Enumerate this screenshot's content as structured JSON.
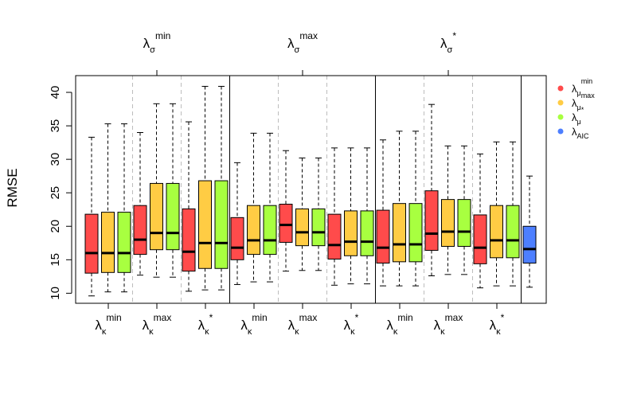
{
  "chart_data": {
    "type": "boxplot",
    "ylabel": "RMSE",
    "ylim": [
      8.5,
      42.5
    ],
    "yticks": [
      10,
      15,
      20,
      25,
      30,
      35,
      40
    ],
    "colors": {
      "mu_min": "#ff4b4b",
      "mu_max": "#ffcc44",
      "mu_star": "#a8ff40",
      "aic": "#4d7fff"
    },
    "sigma_groups": [
      {
        "symbol": "λ",
        "sub": "σ",
        "sup": "min"
      },
      {
        "symbol": "λ",
        "sub": "σ",
        "sup": "max"
      },
      {
        "symbol": "λ",
        "sub": "σ",
        "sup": "*"
      }
    ],
    "kappa_labels": [
      {
        "symbol": "λ",
        "sub": "κ",
        "sup": "min"
      },
      {
        "symbol": "λ",
        "sub": "κ",
        "sup": "max"
      },
      {
        "symbol": "λ",
        "sub": "κ",
        "sup": "*"
      },
      {
        "symbol": "λ",
        "sub": "κ",
        "sup": "min"
      },
      {
        "symbol": "λ",
        "sub": "κ",
        "sup": "max"
      },
      {
        "symbol": "λ",
        "sub": "κ",
        "sup": "*"
      },
      {
        "symbol": "λ",
        "sub": "κ",
        "sup": "min"
      },
      {
        "symbol": "λ",
        "sub": "κ",
        "sup": "max"
      },
      {
        "symbol": "λ",
        "sub": "κ",
        "sup": "*"
      }
    ],
    "legend": {
      "position": "top-right",
      "entries": [
        {
          "key": "mu_min",
          "symbol": "λ",
          "sub": "μ",
          "sup": "min"
        },
        {
          "key": "mu_max",
          "symbol": "λ",
          "sub": "μ",
          "sup": "max"
        },
        {
          "key": "mu_star",
          "symbol": "λ",
          "sub": "μ",
          "sup": "*"
        },
        {
          "key": "aic",
          "symbol": "λ",
          "sub": "AIC",
          "sup": ""
        }
      ]
    },
    "boxes": [
      {
        "color": "mu_min",
        "whisker_low": 9.6,
        "q1": 13.0,
        "median": 16.0,
        "q3": 21.8,
        "whisker_high": 33.3
      },
      {
        "color": "mu_max",
        "whisker_low": 10.2,
        "q1": 13.1,
        "median": 16.0,
        "q3": 22.1,
        "whisker_high": 35.3
      },
      {
        "color": "mu_star",
        "whisker_low": 10.2,
        "q1": 13.1,
        "median": 16.0,
        "q3": 22.1,
        "whisker_high": 35.3
      },
      {
        "color": "mu_min",
        "whisker_low": 12.7,
        "q1": 15.8,
        "median": 18.0,
        "q3": 23.1,
        "whisker_high": 34.0
      },
      {
        "color": "mu_max",
        "whisker_low": 12.4,
        "q1": 16.5,
        "median": 19.0,
        "q3": 26.4,
        "whisker_high": 38.3
      },
      {
        "color": "mu_star",
        "whisker_low": 12.4,
        "q1": 16.5,
        "median": 19.0,
        "q3": 26.4,
        "whisker_high": 38.3
      },
      {
        "color": "mu_min",
        "whisker_low": 10.3,
        "q1": 13.3,
        "median": 16.2,
        "q3": 22.6,
        "whisker_high": 35.6
      },
      {
        "color": "mu_max",
        "whisker_low": 10.5,
        "q1": 13.7,
        "median": 17.5,
        "q3": 26.8,
        "whisker_high": 40.9
      },
      {
        "color": "mu_star",
        "whisker_low": 10.5,
        "q1": 13.7,
        "median": 17.5,
        "q3": 26.8,
        "whisker_high": 40.9
      },
      {
        "color": "mu_min",
        "whisker_low": 11.3,
        "q1": 15.0,
        "median": 16.8,
        "q3": 21.3,
        "whisker_high": 29.5
      },
      {
        "color": "mu_max",
        "whisker_low": 11.7,
        "q1": 15.8,
        "median": 17.9,
        "q3": 23.1,
        "whisker_high": 33.9
      },
      {
        "color": "mu_star",
        "whisker_low": 11.7,
        "q1": 15.8,
        "median": 17.9,
        "q3": 23.1,
        "whisker_high": 33.9
      },
      {
        "color": "mu_min",
        "whisker_low": 13.3,
        "q1": 17.6,
        "median": 20.2,
        "q3": 23.3,
        "whisker_high": 31.3
      },
      {
        "color": "mu_max",
        "whisker_low": 13.4,
        "q1": 17.1,
        "median": 19.1,
        "q3": 22.6,
        "whisker_high": 30.2
      },
      {
        "color": "mu_star",
        "whisker_low": 13.4,
        "q1": 17.1,
        "median": 19.1,
        "q3": 22.6,
        "whisker_high": 30.2
      },
      {
        "color": "mu_min",
        "whisker_low": 11.2,
        "q1": 15.1,
        "median": 17.2,
        "q3": 21.8,
        "whisker_high": 31.7
      },
      {
        "color": "mu_max",
        "whisker_low": 11.4,
        "q1": 15.6,
        "median": 17.7,
        "q3": 22.3,
        "whisker_high": 31.7
      },
      {
        "color": "mu_star",
        "whisker_low": 11.4,
        "q1": 15.6,
        "median": 17.7,
        "q3": 22.3,
        "whisker_high": 31.7
      },
      {
        "color": "mu_min",
        "whisker_low": 11.1,
        "q1": 14.5,
        "median": 16.8,
        "q3": 22.4,
        "whisker_high": 32.9
      },
      {
        "color": "mu_max",
        "whisker_low": 11.1,
        "q1": 14.7,
        "median": 17.3,
        "q3": 23.4,
        "whisker_high": 34.2
      },
      {
        "color": "mu_star",
        "whisker_low": 11.1,
        "q1": 14.7,
        "median": 17.3,
        "q3": 23.4,
        "whisker_high": 34.2
      },
      {
        "color": "mu_min",
        "whisker_low": 12.6,
        "q1": 16.4,
        "median": 18.9,
        "q3": 25.3,
        "whisker_high": 38.2
      },
      {
        "color": "mu_max",
        "whisker_low": 12.8,
        "q1": 17.0,
        "median": 19.2,
        "q3": 24.0,
        "whisker_high": 32.0
      },
      {
        "color": "mu_star",
        "whisker_low": 12.8,
        "q1": 17.0,
        "median": 19.2,
        "q3": 24.0,
        "whisker_high": 32.0
      },
      {
        "color": "mu_min",
        "whisker_low": 10.8,
        "q1": 14.4,
        "median": 16.8,
        "q3": 21.7,
        "whisker_high": 30.8
      },
      {
        "color": "mu_max",
        "whisker_low": 11.1,
        "q1": 15.3,
        "median": 17.9,
        "q3": 23.1,
        "whisker_high": 32.6
      },
      {
        "color": "mu_star",
        "whisker_low": 11.1,
        "q1": 15.3,
        "median": 17.9,
        "q3": 23.1,
        "whisker_high": 32.6
      },
      {
        "color": "aic",
        "whisker_low": 10.9,
        "q1": 14.5,
        "median": 16.6,
        "q3": 20.0,
        "whisker_high": 27.5
      }
    ]
  }
}
